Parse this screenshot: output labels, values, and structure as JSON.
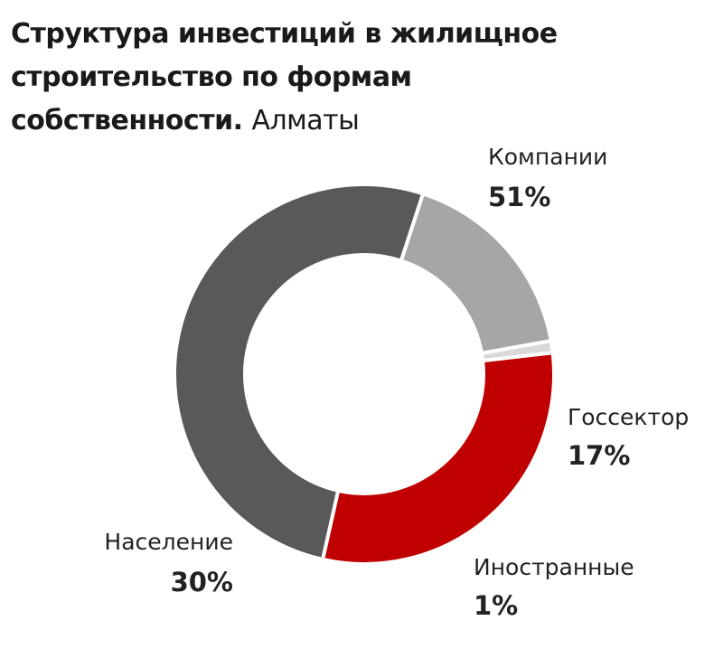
{
  "chart_data": {
    "type": "pie",
    "title": "Структура инвестиций в жилищное строительство по формам собственности.",
    "subtitle": "Алматы",
    "slices": [
      {
        "label": "Компании",
        "value": 51,
        "value_label": "51%",
        "color": "#595959"
      },
      {
        "label": "Госсектор",
        "value": 17,
        "value_label": "17%",
        "color": "#a6a6a6"
      },
      {
        "label": "Иностранные",
        "value": 1,
        "value_label": "1%",
        "color": "#d9d9d9"
      },
      {
        "label": "Население",
        "value": 30,
        "value_label": "30%",
        "color": "#c00000"
      }
    ],
    "donut": true
  }
}
